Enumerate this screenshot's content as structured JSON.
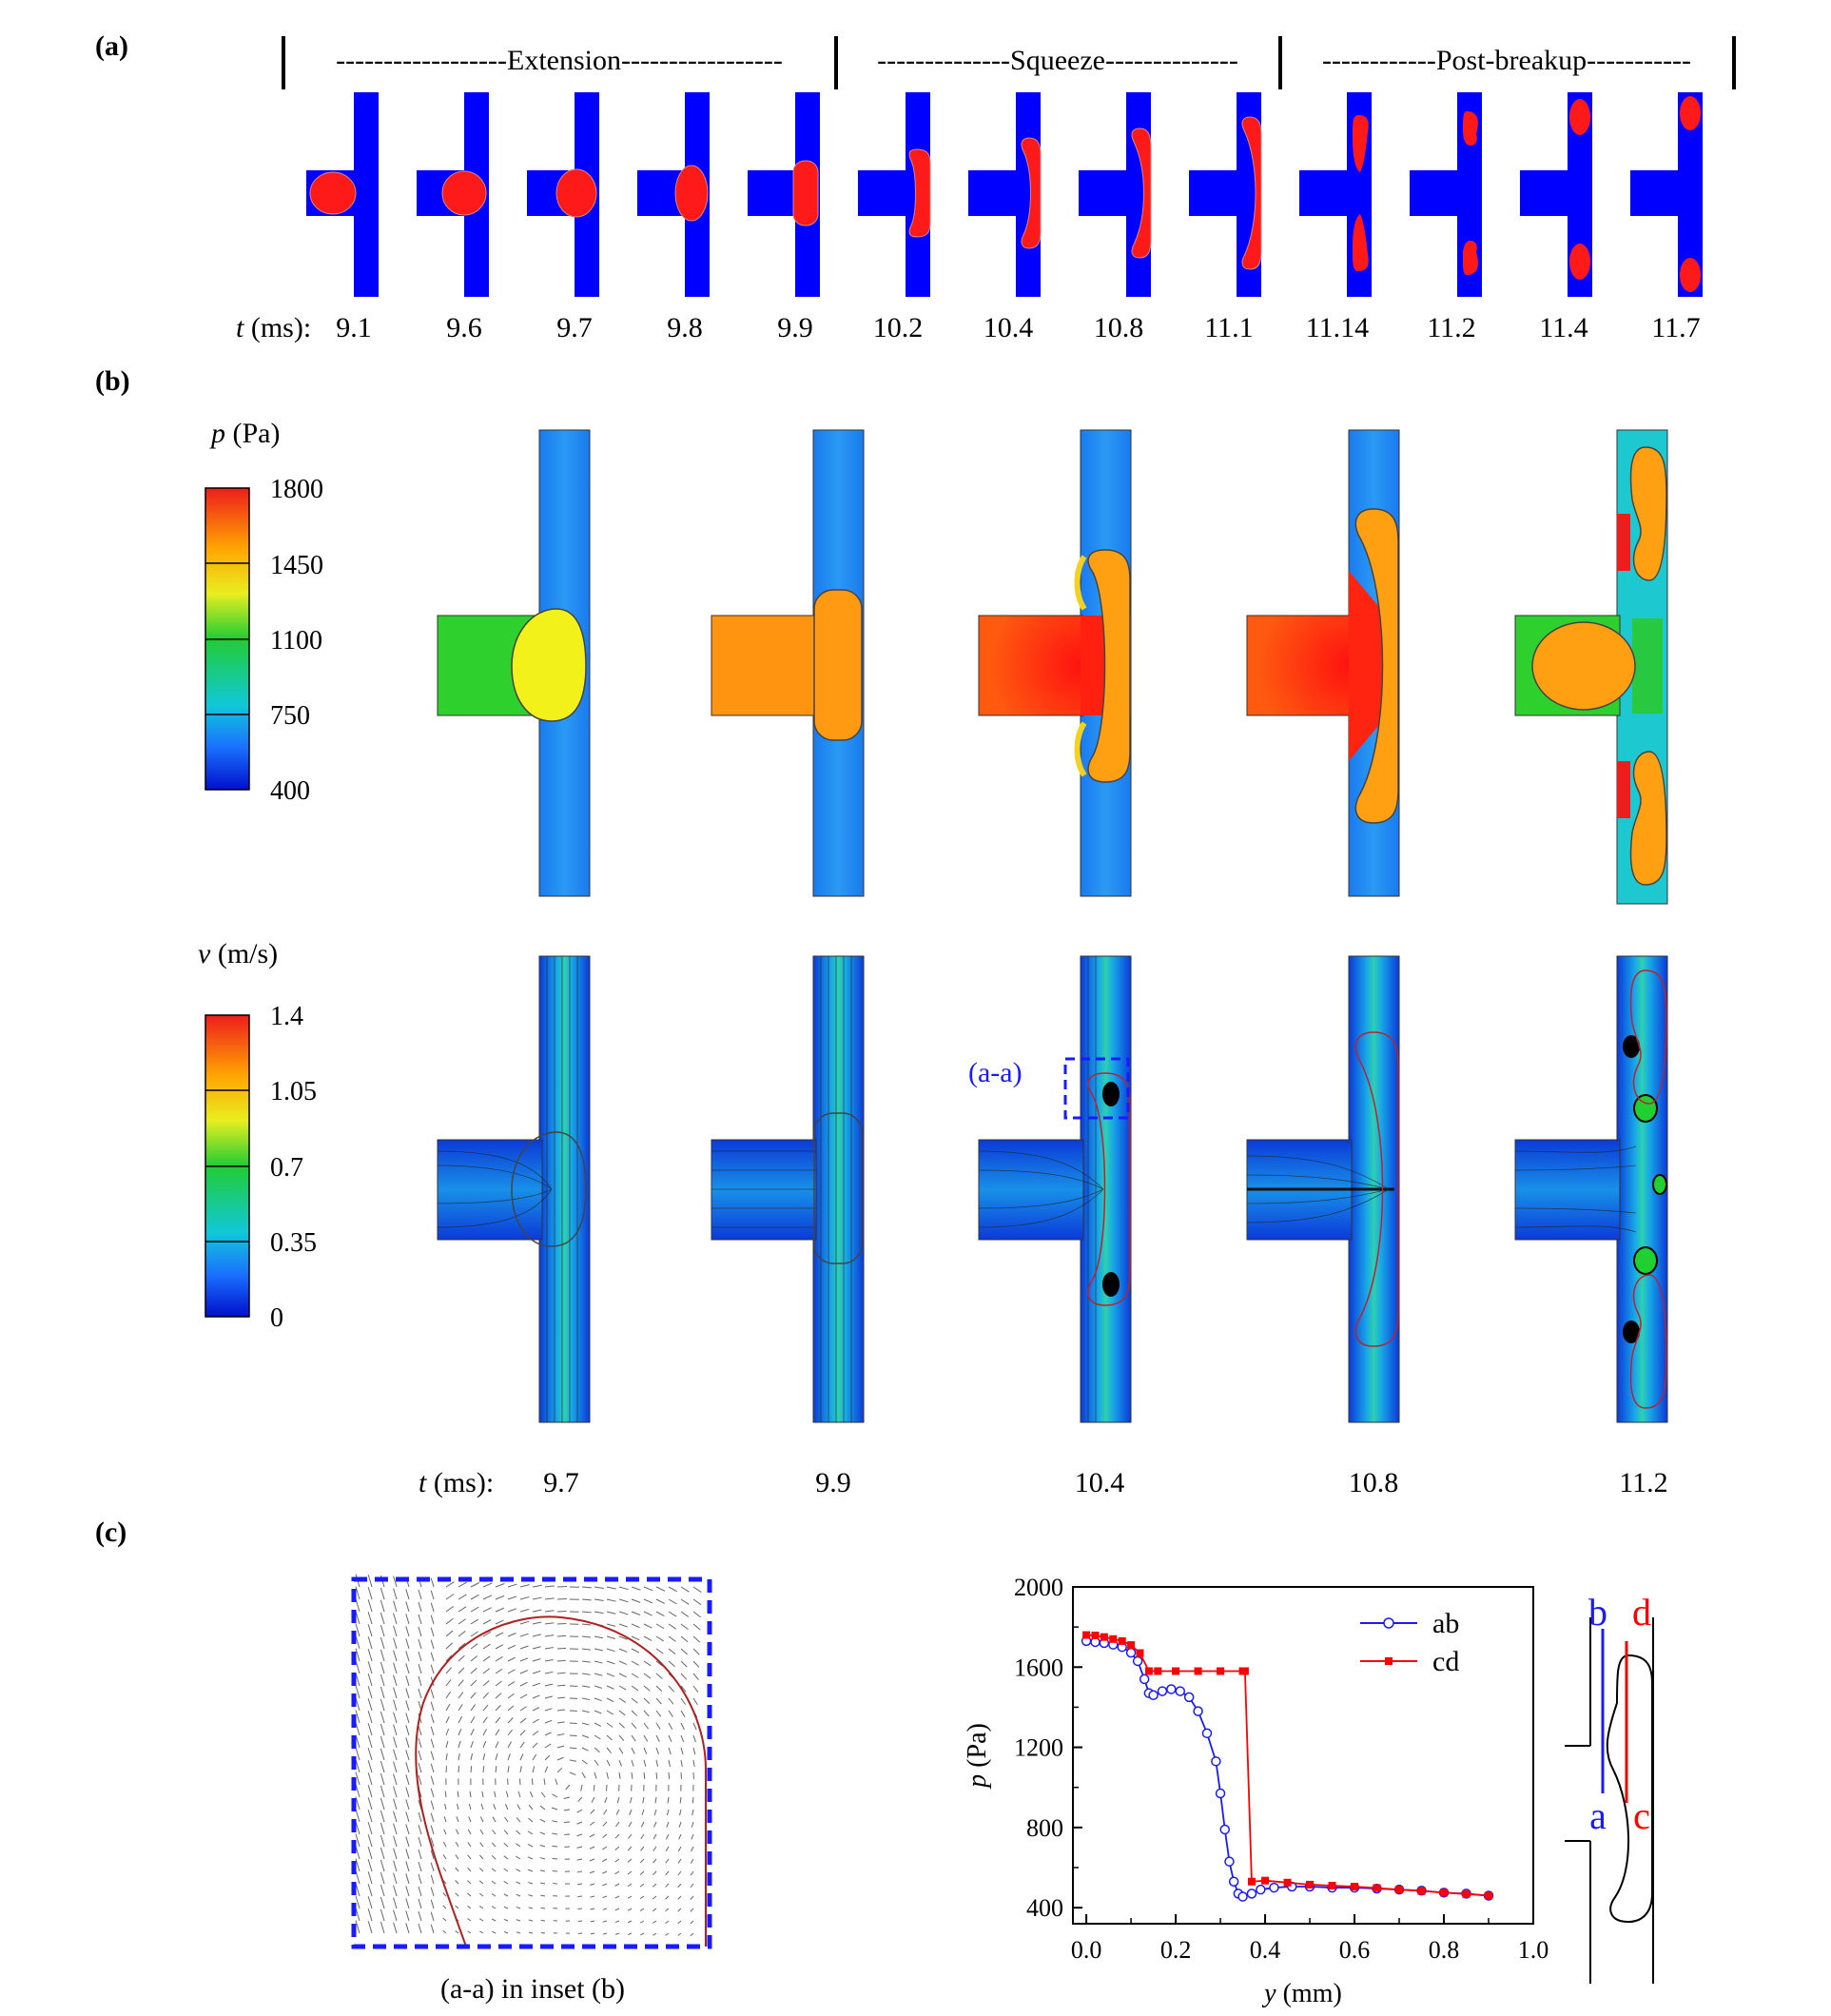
{
  "panel_labels": [
    "(a)",
    "(b)",
    "(c)"
  ],
  "phases": [
    {
      "label": "------------------Extension-----------------"
    },
    {
      "label": "--------------Squeeze--------------"
    },
    {
      "label": "------------Post-breakup-----------"
    }
  ],
  "row_a": {
    "t_label": "t (ms):",
    "times": [
      "9.1",
      "9.6",
      "9.7",
      "9.8",
      "9.9",
      "10.2",
      "10.4",
      "10.8",
      "11.1",
      "11.14",
      "11.2",
      "11.4",
      "11.7"
    ]
  },
  "colorbar_p": {
    "title": "p (Pa)",
    "ticks": [
      "1800",
      "1450",
      "1100",
      "750",
      "400"
    ]
  },
  "colorbar_v": {
    "title": "v (m/s)",
    "ticks": [
      "1.4",
      "1.05",
      "0.7",
      "0.35",
      "0"
    ]
  },
  "inset_callout": "(a-a)",
  "row_b": {
    "t_label": "t (ms):",
    "times": [
      "9.7",
      "9.9",
      "10.4",
      "10.8",
      "11.2"
    ]
  },
  "inset_caption": "(a-a) in inset (b)",
  "colors": {
    "channel": "#0000ff",
    "droplet": "#ff1a1a",
    "inset_border": "#1a1aff",
    "ab": "#1a1aff",
    "cd": "#ff0000"
  },
  "schematic": {
    "b": "b",
    "d": "d",
    "a": "a",
    "c": "c"
  },
  "chart_data": {
    "type": "line",
    "xlabel": "y (mm)",
    "ylabel": "p (Pa)",
    "xlim": [
      -0.03,
      1.0
    ],
    "ylim": [
      320,
      2000
    ],
    "xticks": [
      "0.0",
      "0.2",
      "0.4",
      "0.6",
      "0.8",
      "1.0"
    ],
    "yticks": [
      "400",
      "800",
      "1200",
      "1600",
      "2000"
    ],
    "legend": "top-right",
    "series": [
      {
        "name": "ab",
        "marker": "circle",
        "x": [
          0.0,
          0.02,
          0.04,
          0.06,
          0.08,
          0.1,
          0.115,
          0.13,
          0.14,
          0.15,
          0.17,
          0.19,
          0.21,
          0.23,
          0.25,
          0.27,
          0.29,
          0.3,
          0.31,
          0.32,
          0.33,
          0.34,
          0.35,
          0.37,
          0.39,
          0.42,
          0.46,
          0.5,
          0.55,
          0.6,
          0.65,
          0.7,
          0.75,
          0.8,
          0.85,
          0.9
        ],
        "y": [
          1730,
          1725,
          1720,
          1712,
          1700,
          1672,
          1630,
          1540,
          1470,
          1460,
          1480,
          1490,
          1480,
          1450,
          1380,
          1270,
          1130,
          970,
          790,
          630,
          530,
          470,
          455,
          470,
          490,
          500,
          505,
          505,
          500,
          500,
          495,
          490,
          485,
          475,
          470,
          460
        ]
      },
      {
        "name": "cd",
        "marker": "square",
        "x": [
          0.0,
          0.02,
          0.04,
          0.06,
          0.08,
          0.1,
          0.12,
          0.14,
          0.16,
          0.2,
          0.25,
          0.3,
          0.35,
          0.355,
          0.37,
          0.4,
          0.45,
          0.5,
          0.55,
          0.6,
          0.65,
          0.7,
          0.75,
          0.8,
          0.85,
          0.9
        ],
        "y": [
          1760,
          1758,
          1750,
          1740,
          1730,
          1710,
          1670,
          1580,
          1580,
          1580,
          1580,
          1580,
          1580,
          1580,
          530,
          535,
          525,
          515,
          510,
          505,
          498,
          490,
          483,
          475,
          468,
          460
        ]
      }
    ]
  }
}
